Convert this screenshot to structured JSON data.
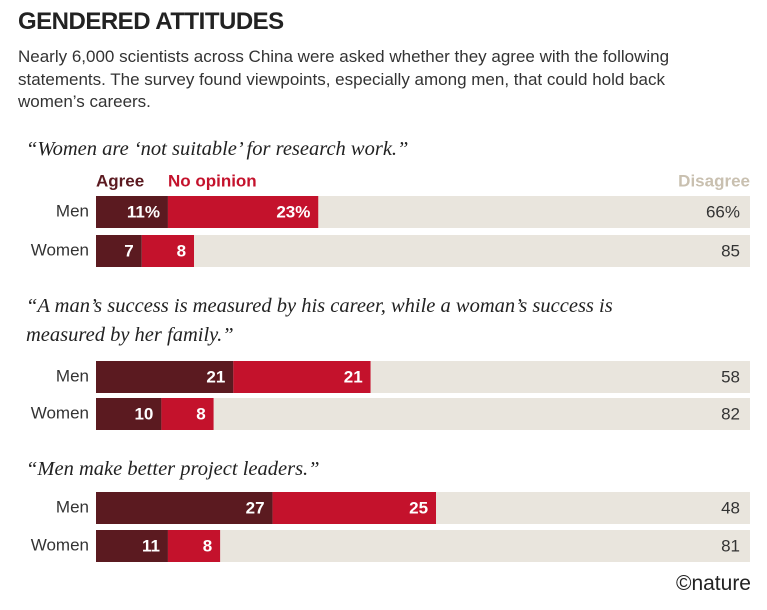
{
  "header": {
    "title": "GENDERED ATTITUDES",
    "subtitle": "Nearly 6,000 scientists across China were asked whether they agree with the following statements. The survey found viewpoints, especially among men, that could hold back women’s careers."
  },
  "chart_data": [
    {
      "type": "bar",
      "orientation": "horizontal",
      "stacked": true,
      "legend": "top",
      "title": "“Women are ‘not suitable’ for research work.”",
      "categories": [
        "Men",
        "Women"
      ],
      "xlim": [
        0,
        100
      ],
      "series": [
        {
          "name": "Agree",
          "color": "#5b1a20",
          "label_color": "#5b1a20",
          "values": [
            11,
            7
          ],
          "value_labels": [
            "11%",
            "7"
          ]
        },
        {
          "name": "No opinion",
          "color": "#c4122c",
          "label_color": "#c4122c",
          "values": [
            23,
            8
          ],
          "value_labels": [
            "23%",
            "8"
          ]
        },
        {
          "name": "Disagree",
          "color": "#e9e5dd",
          "label_color": "#c9c0b0",
          "values": [
            66,
            85
          ],
          "value_labels": [
            "66%",
            "85"
          ]
        }
      ]
    },
    {
      "type": "bar",
      "orientation": "horizontal",
      "stacked": true,
      "title": "“A man’s success is measured by his career, while a woman’s success is measured by her family.”",
      "categories": [
        "Men",
        "Women"
      ],
      "xlim": [
        0,
        100
      ],
      "series": [
        {
          "color": "#5b1a20",
          "values": [
            21,
            10
          ]
        },
        {
          "color": "#c4122c",
          "values": [
            21,
            8
          ]
        },
        {
          "color": "#e9e5dd",
          "values": [
            58,
            82
          ]
        }
      ]
    },
    {
      "type": "bar",
      "orientation": "horizontal",
      "stacked": true,
      "title": "“Men make better project leaders.”",
      "categories": [
        "Men",
        "Women"
      ],
      "xlim": [
        0,
        100
      ],
      "series": [
        {
          "color": "#5b1a20",
          "values": [
            27,
            11
          ]
        },
        {
          "color": "#c4122c",
          "values": [
            25,
            8
          ]
        },
        {
          "color": "#e9e5dd",
          "values": [
            48,
            81
          ]
        }
      ]
    }
  ],
  "footer": {
    "credit": "©nature"
  }
}
